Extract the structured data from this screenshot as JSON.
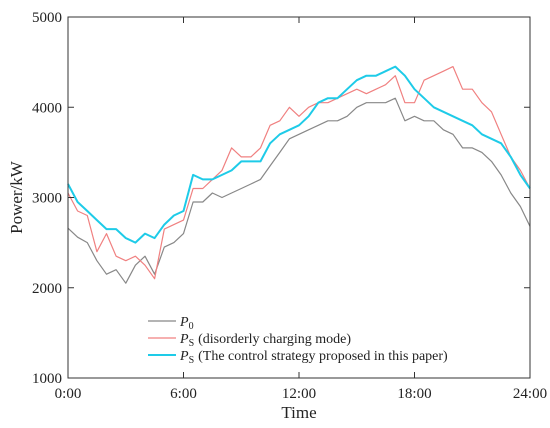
{
  "chart_data": {
    "type": "line",
    "xlabel": "Time",
    "ylabel": "Power/kW",
    "xlim": [
      0,
      24
    ],
    "ylim": [
      1000,
      5000
    ],
    "x_ticks": [
      0,
      6,
      12,
      18,
      24
    ],
    "x_tick_labels": [
      "0:00",
      "6:00",
      "12:00",
      "18:00",
      "24:00"
    ],
    "y_ticks": [
      1000,
      2000,
      3000,
      4000,
      5000
    ],
    "y_tick_labels": [
      "1000",
      "2000",
      "3000",
      "4000",
      "5000"
    ],
    "grid": false,
    "legend_position": "bottom-center",
    "x": [
      0,
      0.5,
      1,
      1.5,
      2,
      2.5,
      3,
      3.5,
      4,
      4.5,
      5,
      5.5,
      6,
      6.5,
      7,
      7.5,
      8,
      8.5,
      9,
      9.5,
      10,
      10.5,
      11,
      11.5,
      12,
      12.5,
      13,
      13.5,
      14,
      14.5,
      15,
      15.5,
      16,
      16.5,
      17,
      17.5,
      18,
      18.5,
      19,
      19.5,
      20,
      20.5,
      21,
      21.5,
      22,
      22.5,
      23,
      23.5,
      24
    ],
    "series": [
      {
        "name_symbol": "P",
        "name_subscript": "0",
        "name_suffix": "",
        "color": "#888888",
        "values": [
          2660,
          2560,
          2500,
          2300,
          2150,
          2200,
          2050,
          2250,
          2350,
          2150,
          2450,
          2500,
          2600,
          2950,
          2950,
          3050,
          3000,
          3050,
          3100,
          3150,
          3200,
          3350,
          3500,
          3650,
          3700,
          3750,
          3800,
          3850,
          3850,
          3900,
          4000,
          4050,
          4050,
          4050,
          4100,
          3850,
          3900,
          3850,
          3850,
          3750,
          3700,
          3550,
          3550,
          3500,
          3400,
          3250,
          3050,
          2900,
          2680
        ]
      },
      {
        "name_symbol": "P",
        "name_subscript": "S",
        "name_suffix": "(disorderly charging mode)",
        "color": "#f08080",
        "values": [
          3050,
          2850,
          2800,
          2400,
          2600,
          2350,
          2300,
          2350,
          2250,
          2100,
          2650,
          2700,
          2750,
          3100,
          3100,
          3200,
          3300,
          3550,
          3450,
          3450,
          3550,
          3800,
          3850,
          4000,
          3900,
          4000,
          4050,
          4050,
          4100,
          4150,
          4200,
          4150,
          4200,
          4250,
          4350,
          4050,
          4050,
          4300,
          4350,
          4400,
          4450,
          4200,
          4200,
          4050,
          3950,
          3700,
          3450,
          3300,
          3100
        ]
      },
      {
        "name_symbol": "P",
        "name_subscript": "S",
        "name_suffix": "(The control strategy proposed in this paper)",
        "color": "#1ecbe8",
        "values": [
          3150,
          2950,
          2850,
          2750,
          2650,
          2650,
          2550,
          2500,
          2600,
          2550,
          2700,
          2800,
          2850,
          3250,
          3200,
          3200,
          3250,
          3300,
          3400,
          3400,
          3400,
          3600,
          3700,
          3750,
          3800,
          3900,
          4050,
          4100,
          4100,
          4200,
          4300,
          4350,
          4350,
          4400,
          4450,
          4350,
          4200,
          4100,
          4000,
          3950,
          3900,
          3850,
          3800,
          3700,
          3650,
          3600,
          3450,
          3250,
          3100
        ]
      }
    ]
  }
}
